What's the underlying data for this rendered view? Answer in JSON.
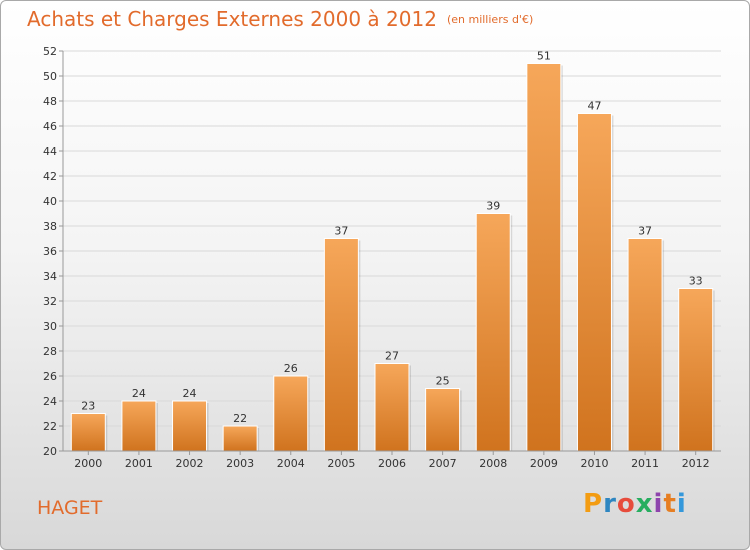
{
  "header": {
    "title": "Achats et Charges Externes 2000 à 2012",
    "subtitle": "(en milliers d'€)"
  },
  "footer": {
    "city": "HAGET",
    "logo_text": "Proxiti",
    "logo_colors": [
      "#f39c12",
      "#2e86c1",
      "#e74c3c",
      "#27ae60",
      "#8e44ad",
      "#e67e22",
      "#3498db"
    ]
  },
  "colors": {
    "accent": "#e26b2c",
    "bar_top": "#f6a75a",
    "bar_bottom": "#d0731e"
  },
  "chart_data": {
    "type": "bar",
    "categories": [
      "2000",
      "2001",
      "2002",
      "2003",
      "2004",
      "2005",
      "2006",
      "2007",
      "2008",
      "2009",
      "2010",
      "2011",
      "2012"
    ],
    "values": [
      23,
      24,
      24,
      22,
      26,
      37,
      27,
      25,
      39,
      51,
      47,
      37,
      33
    ],
    "title": "Achats et Charges Externes 2000 à 2012",
    "ylim": [
      20,
      52
    ],
    "yticks": [
      20,
      22,
      24,
      26,
      28,
      30,
      32,
      34,
      36,
      38,
      40,
      42,
      44,
      46,
      48,
      50,
      52
    ],
    "grid": true
  }
}
